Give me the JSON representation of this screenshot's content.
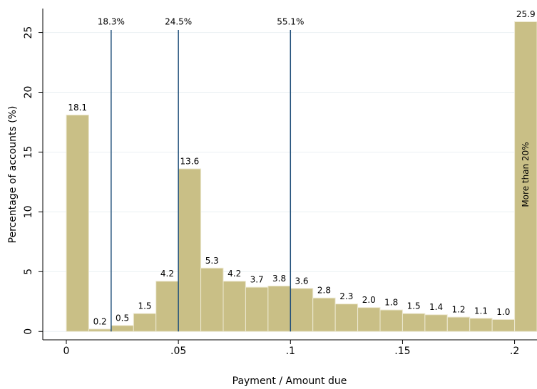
{
  "chart_data": {
    "type": "histogram",
    "xlabel": "Payment / Amount due",
    "ylabel": "Percentage of accounts (%)",
    "bins": [
      0,
      0.01,
      0.02,
      0.03,
      0.04,
      0.05,
      0.06,
      0.07,
      0.08,
      0.09,
      0.1,
      0.11,
      0.12,
      0.13,
      0.14,
      0.15,
      0.16,
      0.17,
      0.18,
      0.19,
      0.2,
      0.21
    ],
    "values": [
      18.1,
      0.2,
      0.5,
      1.5,
      4.2,
      13.6,
      5.3,
      4.2,
      3.7,
      3.8,
      3.6,
      2.8,
      2.3,
      2.0,
      1.8,
      1.5,
      1.4,
      1.2,
      1.1,
      1.0,
      25.9
    ],
    "value_labels": [
      "18.1",
      "0.2",
      "0.5",
      "1.5",
      "4.2",
      "13.6",
      "5.3",
      "4.2",
      "3.7",
      "3.8",
      "3.6",
      "2.8",
      "2.3",
      "2.0",
      "1.8",
      "1.5",
      "1.4",
      "1.2",
      "1.1",
      "1.0",
      "25.9"
    ],
    "color": "#c9bf86",
    "annotation": "More than 20%",
    "lines": [
      {
        "x": 0.02,
        "label": "18.3%"
      },
      {
        "x": 0.05,
        "label": "24.5%"
      },
      {
        "x": 0.1,
        "label": "55.1%"
      }
    ],
    "line_color": "#1f4e79",
    "xlim": [
      -0.0105,
      0.21
    ],
    "xticks": [
      0,
      {
        "value": 0.05,
        "label": ".05"
      },
      {
        "value": 0.1,
        "label": ".1"
      },
      {
        "value": 0.15,
        "label": ".15"
      },
      {
        "value": 0.2,
        "label": ".2"
      }
    ],
    "ylim": [
      -0.7,
      27
    ],
    "yticks": [
      0,
      5,
      10,
      15,
      20,
      25
    ],
    "grid": true
  }
}
